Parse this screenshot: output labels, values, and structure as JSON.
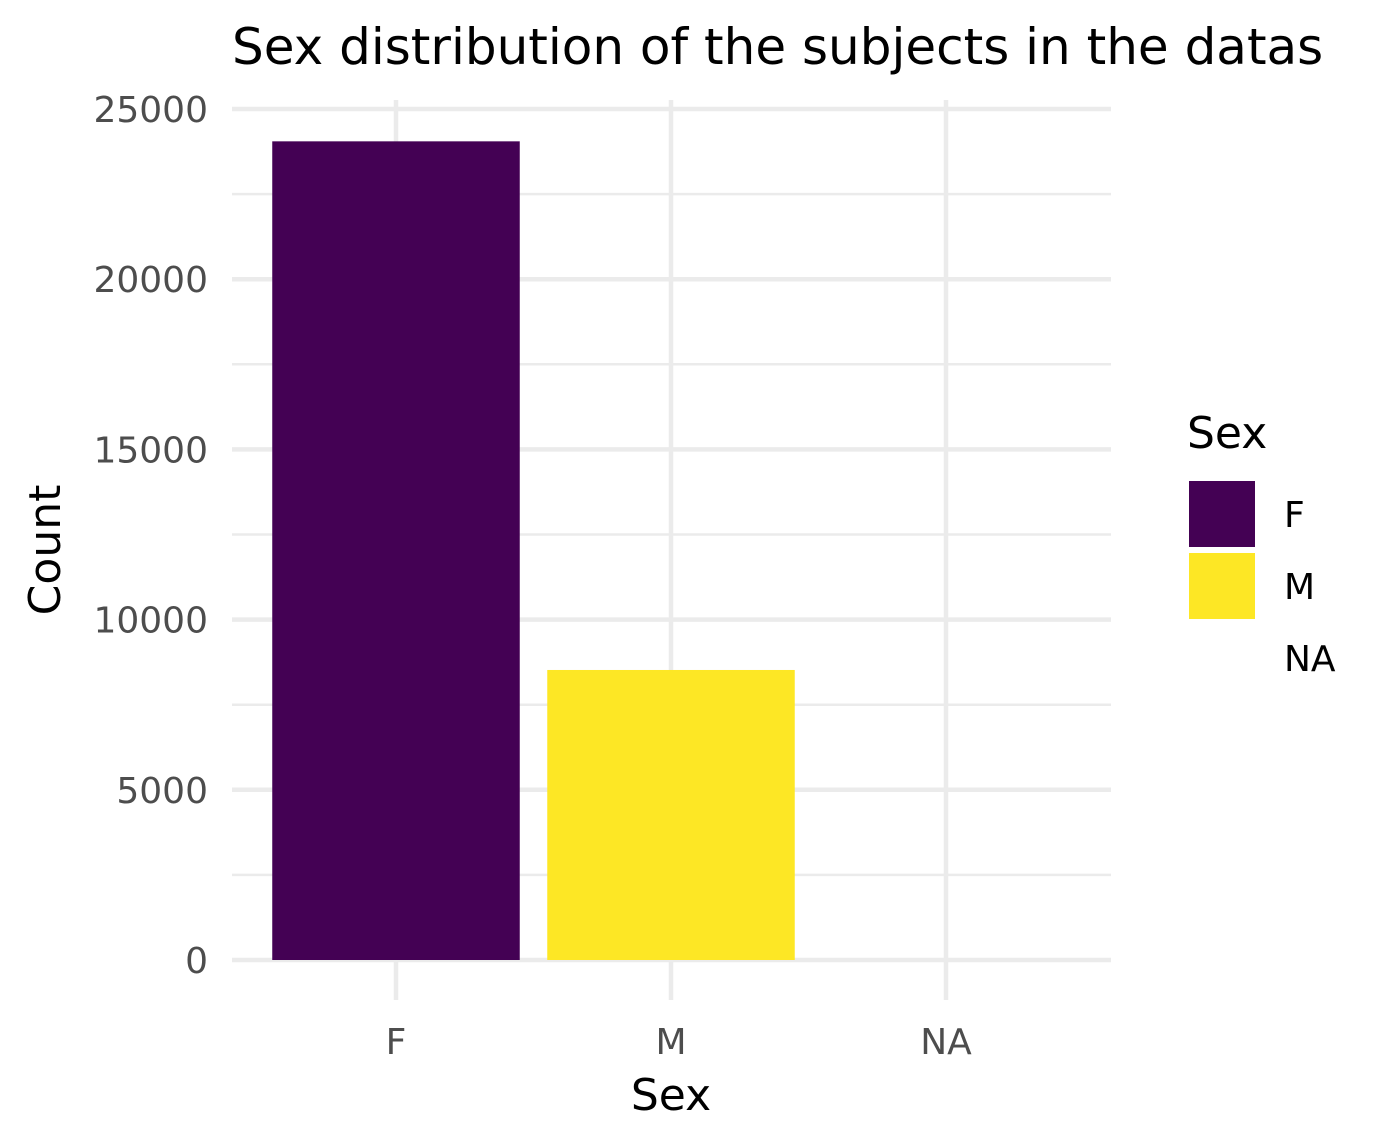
{
  "chart_data": {
    "type": "bar",
    "title": "Sex distribution of the subjects in the datas",
    "xlabel": "Sex",
    "ylabel": "Count",
    "categories": [
      "F",
      "M",
      "NA"
    ],
    "values": [
      24050,
      8520,
      0
    ],
    "colors": [
      "#440154",
      "#FDE725",
      null
    ],
    "ylim": [
      0,
      25000
    ],
    "yticks": [
      0,
      5000,
      10000,
      15000,
      20000,
      25000
    ],
    "ytick_labels": [
      "0",
      "5000",
      "10000",
      "15000",
      "20000",
      "25000"
    ],
    "grid": true,
    "legend": {
      "title": "Sex",
      "position": "right",
      "entries": [
        {
          "label": "F",
          "color": "#440154"
        },
        {
          "label": "M",
          "color": "#FDE725"
        },
        {
          "label": "NA",
          "color": null
        }
      ]
    }
  }
}
